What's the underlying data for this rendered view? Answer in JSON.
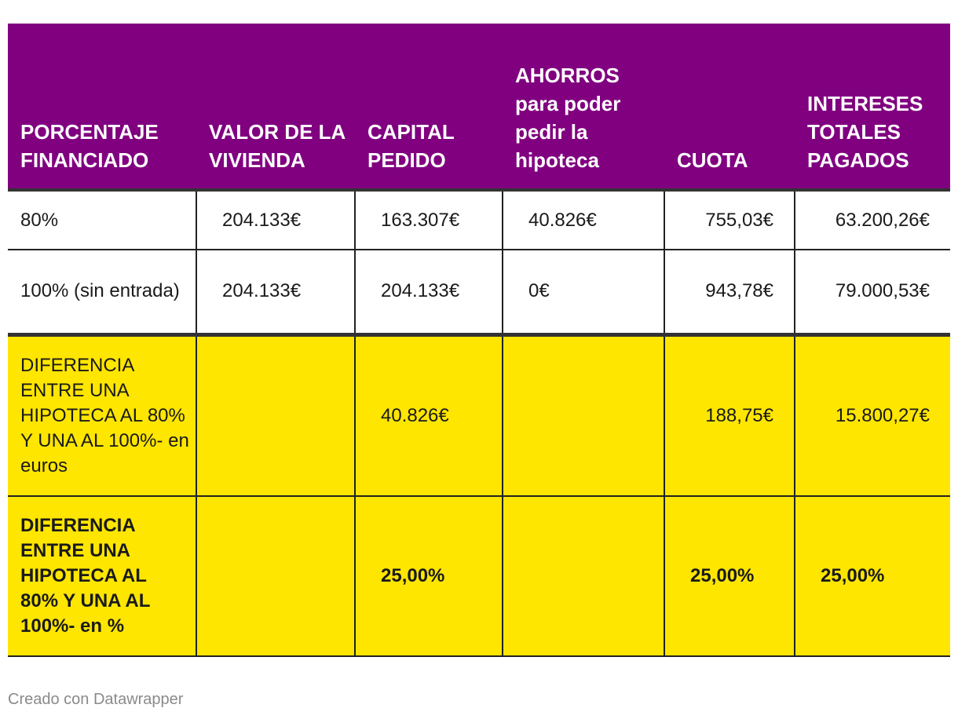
{
  "chart_data": {
    "type": "table",
    "columns": [
      "PORCENTAJE FINANCIADO",
      "VALOR DE LA VIVIENDA",
      "CAPITAL PEDIDO",
      "AHORROS para poder pedir la hipoteca",
      "CUOTA",
      "INTERESES TOTALES PAGADOS"
    ],
    "rows": [
      [
        "80%",
        "204.133€",
        "163.307€",
        "40.826€",
        "755,03€",
        "63.200,26€"
      ],
      [
        "100% (sin entrada)",
        "204.133€",
        "204.133€",
        "0€",
        "943,78€",
        "79.000,53€"
      ],
      [
        "DIFERENCIA ENTRE UNA HIPOTECA AL 80% Y UNA AL 100%- en euros",
        "",
        "40.826€",
        "",
        "188,75€",
        "15.800,27€"
      ],
      [
        "DIFERENCIA ENTRE UNA HIPOTECA AL 80% Y UNA AL 100%- en %",
        "",
        "25,00%",
        "",
        "25,00%",
        "25,00%"
      ]
    ]
  },
  "footer": "Creado con Datawrapper",
  "colors": {
    "header_bg": "#800080",
    "header_text": "#ffffff",
    "highlight_bg": "#ffe600"
  }
}
